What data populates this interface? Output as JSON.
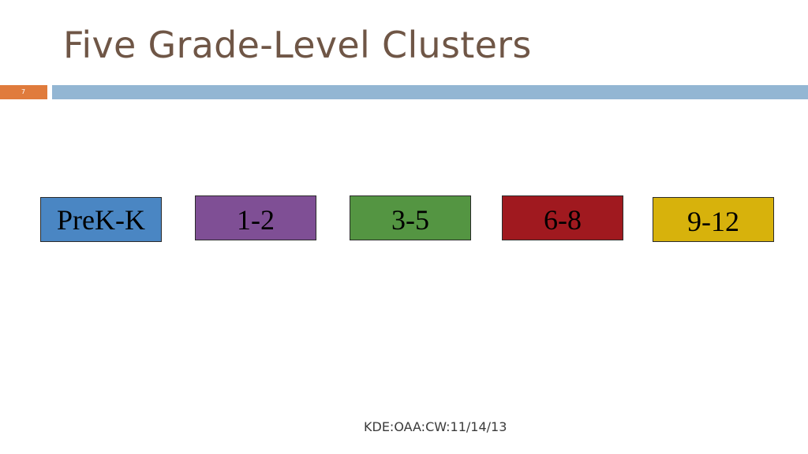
{
  "slide": {
    "title": "Five Grade-Level Clusters",
    "number": "7",
    "footer": "KDE:OAA:CW:11/14/13"
  },
  "clusters": [
    {
      "label": "PreK-K",
      "color": "#4a86c3",
      "text_color": "#000000"
    },
    {
      "label": "1-2",
      "color": "#7f4f95",
      "text_color": "#000000"
    },
    {
      "label": "3-5",
      "color": "#549542",
      "text_color": "#000000"
    },
    {
      "label": "6-8",
      "color": "#a0191f",
      "text_color": "#000000"
    },
    {
      "label": "9-12",
      "color": "#d7b20c",
      "text_color": "#000000"
    }
  ]
}
